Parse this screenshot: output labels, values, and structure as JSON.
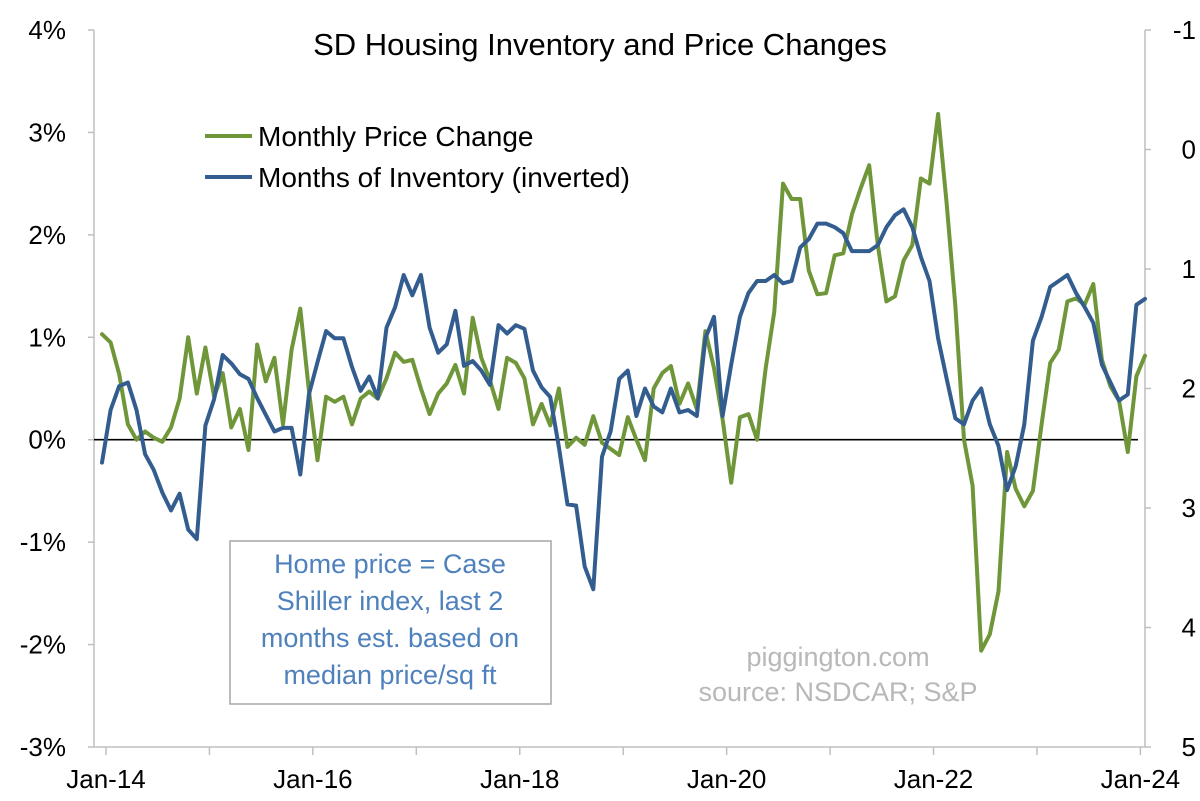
{
  "chart_data": {
    "type": "line",
    "title": "SD Housing Inventory and Price Changes",
    "x_ticks": [
      "Jan-14",
      "Jan-16",
      "Jan-18",
      "Jan-20",
      "Jan-22",
      "Jan-24"
    ],
    "y_left": {
      "range": [
        -3,
        4
      ],
      "ticks": [
        "-3%",
        "-2%",
        "-1%",
        "0%",
        "1%",
        "2%",
        "3%",
        "4%"
      ],
      "unit": "%"
    },
    "y_right": {
      "range": [
        -1,
        5
      ],
      "inverted": true,
      "ticks": [
        "-1",
        "0",
        "1",
        "2",
        "3",
        "4",
        "5"
      ]
    },
    "legend_position": "top-left",
    "zero_line": true,
    "grid": false,
    "x_start": "2014-01",
    "series": [
      {
        "name": "Monthly Price Change",
        "color": "#70963a",
        "axis": "left",
        "values": [
          1.03,
          0.95,
          0.64,
          0.15,
          0.0,
          0.08,
          0.02,
          -0.02,
          0.12,
          0.4,
          1.0,
          0.45,
          0.9,
          0.42,
          0.65,
          0.12,
          0.3,
          -0.1,
          0.93,
          0.57,
          0.8,
          0.15,
          0.88,
          1.28,
          0.48,
          -0.2,
          0.42,
          0.37,
          0.42,
          0.15,
          0.4,
          0.47,
          0.4,
          0.6,
          0.85,
          0.76,
          0.78,
          0.5,
          0.25,
          0.45,
          0.55,
          0.73,
          0.45,
          1.19,
          0.8,
          0.58,
          0.3,
          0.8,
          0.75,
          0.6,
          0.15,
          0.35,
          0.14,
          0.5,
          -0.07,
          0.02,
          -0.05,
          0.23,
          -0.03,
          -0.09,
          -0.15,
          0.22,
          0.0,
          -0.2,
          0.5,
          0.65,
          0.72,
          0.35,
          0.55,
          0.3,
          1.06,
          0.7,
          0.2,
          -0.42,
          0.22,
          0.25,
          0.0,
          0.7,
          1.25,
          2.5,
          2.35,
          2.35,
          1.65,
          1.42,
          1.43,
          1.8,
          1.82,
          2.2,
          2.45,
          2.68,
          1.9,
          1.35,
          1.4,
          1.75,
          1.9,
          2.55,
          2.5,
          3.18,
          2.3,
          1.3,
          0.0,
          -0.45,
          -2.06,
          -1.9,
          -1.48,
          -0.12,
          -0.48,
          -0.65,
          -0.5,
          0.15,
          0.75,
          0.88,
          1.35,
          1.38,
          1.32,
          1.52,
          0.78,
          0.52,
          0.38,
          -0.12,
          0.62,
          0.82
        ]
      },
      {
        "name": "Months of Inventory (inverted)",
        "color": "#345d8f",
        "axis": "right",
        "values": [
          2.62,
          2.18,
          1.98,
          1.95,
          2.18,
          2.55,
          2.68,
          2.87,
          3.02,
          2.88,
          3.18,
          3.26,
          2.31,
          2.09,
          1.72,
          1.79,
          1.88,
          1.92,
          2.08,
          2.22,
          2.36,
          2.33,
          2.33,
          2.72,
          2.05,
          1.78,
          1.52,
          1.58,
          1.58,
          1.82,
          2.02,
          1.9,
          2.08,
          1.49,
          1.32,
          1.05,
          1.22,
          1.05,
          1.49,
          1.7,
          1.63,
          1.35,
          1.81,
          1.77,
          1.85,
          1.97,
          1.47,
          1.54,
          1.47,
          1.5,
          1.85,
          1.99,
          2.07,
          2.49,
          2.97,
          2.98,
          3.49,
          3.68,
          2.57,
          2.36,
          1.92,
          1.85,
          2.23,
          2.0,
          2.15,
          2.2,
          2.0,
          2.2,
          2.18,
          2.23,
          1.58,
          1.4,
          2.23,
          1.8,
          1.4,
          1.2,
          1.1,
          1.1,
          1.05,
          1.12,
          1.1,
          0.82,
          0.75,
          0.62,
          0.62,
          0.65,
          0.7,
          0.85,
          0.85,
          0.85,
          0.8,
          0.65,
          0.55,
          0.5,
          0.65,
          0.9,
          1.1,
          1.58,
          1.92,
          2.25,
          2.3,
          2.1,
          2.0,
          2.3,
          2.48,
          2.85,
          2.65,
          2.3,
          1.6,
          1.4,
          1.15,
          1.1,
          1.05,
          1.2,
          1.32,
          1.45,
          1.8,
          1.95,
          2.1,
          2.05,
          1.3,
          1.25
        ]
      }
    ]
  },
  "note": {
    "lines": [
      "Home price = Case",
      "Shiller index, last 2",
      "months est. based on",
      "median price/sq ft"
    ],
    "color": "#4f81bd"
  },
  "watermark": {
    "lines": [
      "piggington.com",
      "source: NSDCAR; S&P"
    ]
  }
}
